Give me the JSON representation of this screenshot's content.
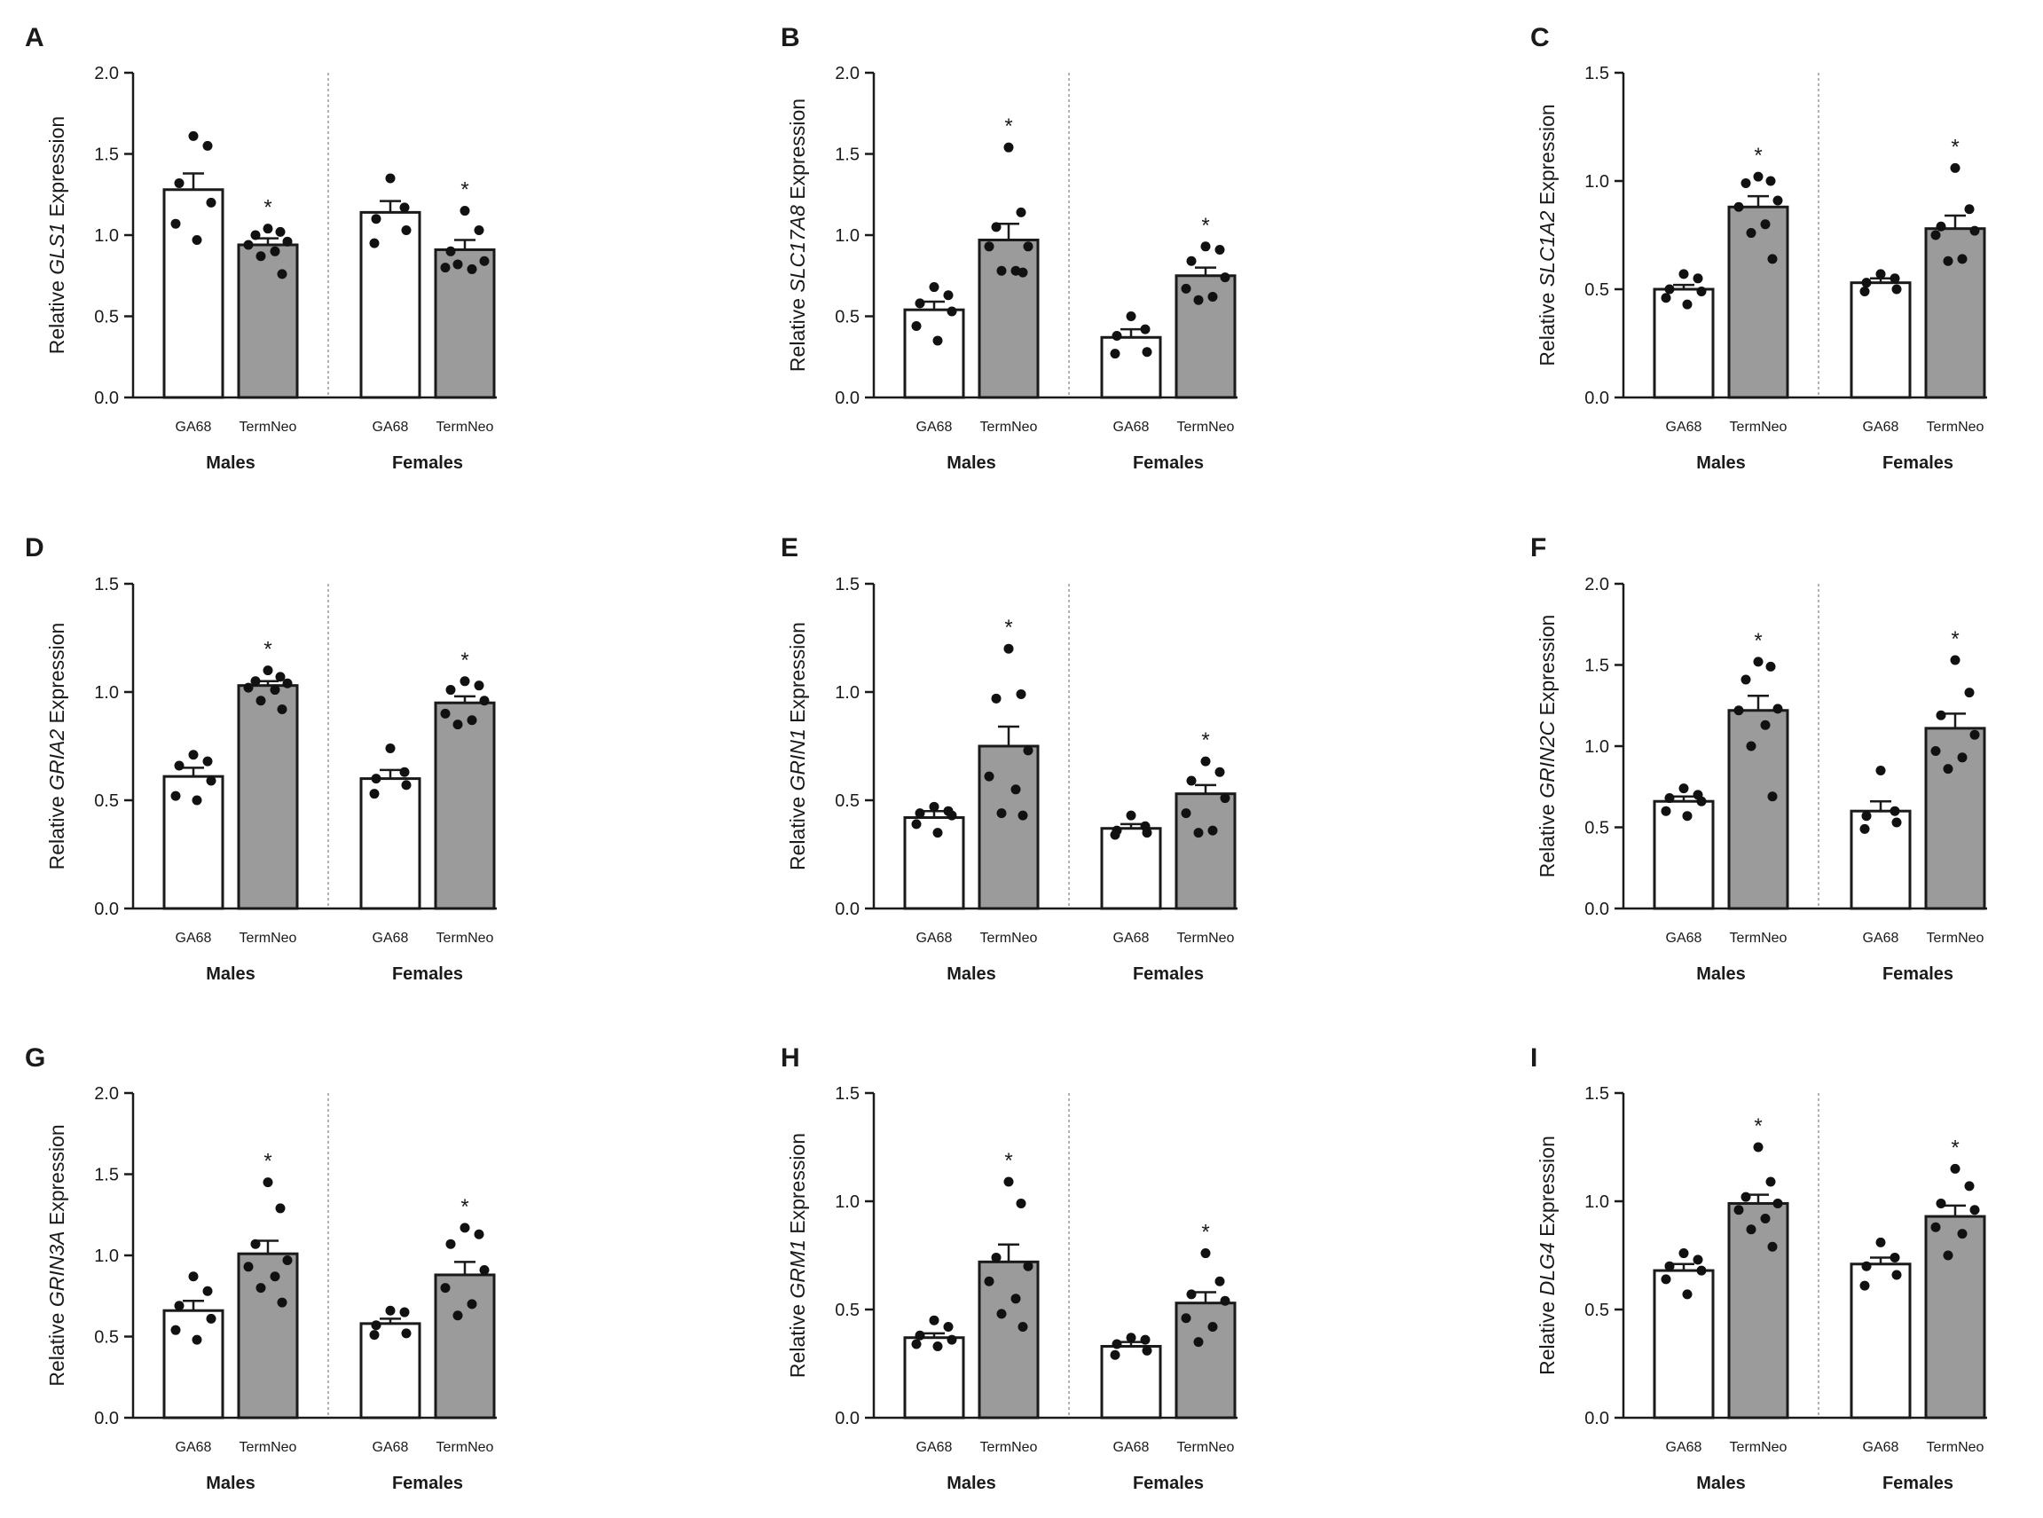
{
  "chart_data": [
    {
      "type": "bar",
      "panel": "A",
      "gene": "GLS1",
      "ylabel_prefix": "Relative ",
      "ylabel_suffix": " Expression",
      "ylim": [
        0,
        2.0
      ],
      "yticks": [
        "0.0",
        "0.5",
        "1.0",
        "1.5",
        "2.0"
      ],
      "ytick_values": [
        0,
        0.5,
        1.0,
        1.5,
        2.0
      ],
      "groups": [
        "Males",
        "Females"
      ],
      "categories": [
        "GA68",
        "TermNeo"
      ],
      "bars": [
        {
          "group": "Males",
          "category": "GA68",
          "mean": 1.28,
          "sem": 0.1,
          "points": [
            1.61,
            1.55,
            1.32,
            1.2,
            1.07,
            0.97
          ],
          "sig": ""
        },
        {
          "group": "Males",
          "category": "TermNeo",
          "mean": 0.94,
          "sem": 0.04,
          "points": [
            1.04,
            1.02,
            1.0,
            0.96,
            0.94,
            0.9,
            0.87,
            0.76
          ],
          "sig": "*"
        },
        {
          "group": "Females",
          "category": "GA68",
          "mean": 1.14,
          "sem": 0.07,
          "points": [
            1.35,
            1.17,
            1.1,
            1.03,
            0.95
          ],
          "sig": ""
        },
        {
          "group": "Females",
          "category": "TermNeo",
          "mean": 0.91,
          "sem": 0.06,
          "points": [
            1.15,
            1.03,
            0.9,
            0.84,
            0.8,
            0.79,
            0.82
          ],
          "sig": "*"
        }
      ]
    },
    {
      "type": "bar",
      "panel": "B",
      "gene": "SLC17A8",
      "ylabel_prefix": "Relative ",
      "ylabel_suffix": " Expression",
      "ylim": [
        0,
        2.0
      ],
      "yticks": [
        "0.0",
        "0.5",
        "1.0",
        "1.5",
        "2.0"
      ],
      "ytick_values": [
        0,
        0.5,
        1.0,
        1.5,
        2.0
      ],
      "groups": [
        "Males",
        "Females"
      ],
      "categories": [
        "GA68",
        "TermNeo"
      ],
      "bars": [
        {
          "group": "Males",
          "category": "GA68",
          "mean": 0.54,
          "sem": 0.05,
          "points": [
            0.68,
            0.63,
            0.58,
            0.53,
            0.44,
            0.35
          ],
          "sig": ""
        },
        {
          "group": "Males",
          "category": "TermNeo",
          "mean": 0.97,
          "sem": 0.1,
          "points": [
            1.54,
            1.14,
            1.05,
            0.93,
            0.93,
            0.78,
            0.78,
            0.77
          ],
          "sig": "*"
        },
        {
          "group": "Females",
          "category": "GA68",
          "mean": 0.37,
          "sem": 0.05,
          "points": [
            0.5,
            0.42,
            0.38,
            0.28,
            0.27
          ],
          "sig": ""
        },
        {
          "group": "Females",
          "category": "TermNeo",
          "mean": 0.75,
          "sem": 0.05,
          "points": [
            0.93,
            0.91,
            0.84,
            0.74,
            0.67,
            0.62,
            0.6
          ],
          "sig": "*"
        }
      ]
    },
    {
      "type": "bar",
      "panel": "C",
      "gene": "SLC1A2",
      "ylabel_prefix": "Relative ",
      "ylabel_suffix": " Expression",
      "ylim": [
        0,
        1.5
      ],
      "yticks": [
        "0.0",
        "0.5",
        "1.0",
        "1.5"
      ],
      "ytick_values": [
        0,
        0.5,
        1.0,
        1.5
      ],
      "groups": [
        "Males",
        "Females"
      ],
      "categories": [
        "GA68",
        "TermNeo"
      ],
      "bars": [
        {
          "group": "Males",
          "category": "GA68",
          "mean": 0.5,
          "sem": 0.02,
          "points": [
            0.57,
            0.55,
            0.5,
            0.49,
            0.46,
            0.43
          ],
          "sig": ""
        },
        {
          "group": "Males",
          "category": "TermNeo",
          "mean": 0.88,
          "sem": 0.05,
          "points": [
            1.02,
            1.0,
            0.99,
            0.91,
            0.88,
            0.8,
            0.76,
            0.64
          ],
          "sig": "*"
        },
        {
          "group": "Females",
          "category": "GA68",
          "mean": 0.53,
          "sem": 0.02,
          "points": [
            0.57,
            0.55,
            0.53,
            0.5,
            0.49
          ],
          "sig": ""
        },
        {
          "group": "Females",
          "category": "TermNeo",
          "mean": 0.78,
          "sem": 0.06,
          "points": [
            1.06,
            0.87,
            0.79,
            0.77,
            0.75,
            0.64,
            0.63
          ],
          "sig": "*"
        }
      ]
    },
    {
      "type": "bar",
      "panel": "D",
      "gene": "GRIA2",
      "ylabel_prefix": "Relative ",
      "ylabel_suffix": " Expression",
      "ylim": [
        0,
        1.5
      ],
      "yticks": [
        "0.0",
        "0.5",
        "1.0",
        "1.5"
      ],
      "ytick_values": [
        0,
        0.5,
        1.0,
        1.5
      ],
      "groups": [
        "Males",
        "Females"
      ],
      "categories": [
        "GA68",
        "TermNeo"
      ],
      "bars": [
        {
          "group": "Males",
          "category": "GA68",
          "mean": 0.61,
          "sem": 0.04,
          "points": [
            0.71,
            0.68,
            0.66,
            0.59,
            0.52,
            0.5
          ],
          "sig": ""
        },
        {
          "group": "Males",
          "category": "TermNeo",
          "mean": 1.03,
          "sem": 0.02,
          "points": [
            1.1,
            1.07,
            1.05,
            1.04,
            1.02,
            1.01,
            0.96,
            0.92
          ],
          "sig": "*"
        },
        {
          "group": "Females",
          "category": "GA68",
          "mean": 0.6,
          "sem": 0.04,
          "points": [
            0.74,
            0.63,
            0.6,
            0.57,
            0.53
          ],
          "sig": ""
        },
        {
          "group": "Females",
          "category": "TermNeo",
          "mean": 0.95,
          "sem": 0.03,
          "points": [
            1.05,
            1.03,
            1.01,
            0.96,
            0.9,
            0.87,
            0.85
          ],
          "sig": "*"
        }
      ]
    },
    {
      "type": "bar",
      "panel": "E",
      "gene": "GRIN1",
      "ylabel_prefix": "Relative ",
      "ylabel_suffix": " Expression",
      "ylim": [
        0,
        1.5
      ],
      "yticks": [
        "0.0",
        "0.5",
        "1.0",
        "1.5"
      ],
      "ytick_values": [
        0,
        0.5,
        1.0,
        1.5
      ],
      "groups": [
        "Males",
        "Females"
      ],
      "categories": [
        "GA68",
        "TermNeo"
      ],
      "bars": [
        {
          "group": "Males",
          "category": "GA68",
          "mean": 0.42,
          "sem": 0.03,
          "points": [
            0.47,
            0.45,
            0.44,
            0.43,
            0.39,
            0.35
          ],
          "sig": ""
        },
        {
          "group": "Males",
          "category": "TermNeo",
          "mean": 0.75,
          "sem": 0.09,
          "points": [
            1.2,
            0.99,
            0.97,
            0.73,
            0.61,
            0.55,
            0.44,
            0.43
          ],
          "sig": "*"
        },
        {
          "group": "Females",
          "category": "GA68",
          "mean": 0.37,
          "sem": 0.02,
          "points": [
            0.43,
            0.38,
            0.36,
            0.35,
            0.34
          ],
          "sig": ""
        },
        {
          "group": "Females",
          "category": "TermNeo",
          "mean": 0.53,
          "sem": 0.04,
          "points": [
            0.68,
            0.63,
            0.59,
            0.51,
            0.44,
            0.36,
            0.35
          ],
          "sig": "*"
        }
      ]
    },
    {
      "type": "bar",
      "panel": "F",
      "gene": "GRIN2C",
      "ylabel_prefix": "Relative ",
      "ylabel_suffix": " Expression",
      "ylim": [
        0,
        2.0
      ],
      "yticks": [
        "0.0",
        "0.5",
        "1.0",
        "1.5",
        "2.0"
      ],
      "ytick_values": [
        0,
        0.5,
        1.0,
        1.5,
        2.0
      ],
      "groups": [
        "Males",
        "Females"
      ],
      "categories": [
        "GA68",
        "TermNeo"
      ],
      "bars": [
        {
          "group": "Males",
          "category": "GA68",
          "mean": 0.66,
          "sem": 0.03,
          "points": [
            0.74,
            0.7,
            0.68,
            0.66,
            0.6,
            0.57
          ],
          "sig": ""
        },
        {
          "group": "Males",
          "category": "TermNeo",
          "mean": 1.22,
          "sem": 0.09,
          "points": [
            1.52,
            1.49,
            1.41,
            1.23,
            1.22,
            1.13,
            1.0,
            0.69
          ],
          "sig": "*"
        },
        {
          "group": "Females",
          "category": "GA68",
          "mean": 0.6,
          "sem": 0.06,
          "points": [
            0.85,
            0.6,
            0.57,
            0.53,
            0.49
          ],
          "sig": ""
        },
        {
          "group": "Females",
          "category": "TermNeo",
          "mean": 1.11,
          "sem": 0.09,
          "points": [
            1.53,
            1.33,
            1.19,
            1.07,
            0.97,
            0.93,
            0.86
          ],
          "sig": "*"
        }
      ]
    },
    {
      "type": "bar",
      "panel": "G",
      "gene": "GRIN3A",
      "ylabel_prefix": "Relative ",
      "ylabel_suffix": " Expression",
      "ylim": [
        0,
        2.0
      ],
      "yticks": [
        "0.0",
        "0.5",
        "1.0",
        "1.5",
        "2.0"
      ],
      "ytick_values": [
        0,
        0.5,
        1.0,
        1.5,
        2.0
      ],
      "groups": [
        "Males",
        "Females"
      ],
      "categories": [
        "GA68",
        "TermNeo"
      ],
      "bars": [
        {
          "group": "Males",
          "category": "GA68",
          "mean": 0.66,
          "sem": 0.06,
          "points": [
            0.87,
            0.78,
            0.69,
            0.61,
            0.54,
            0.48
          ],
          "sig": ""
        },
        {
          "group": "Males",
          "category": "TermNeo",
          "mean": 1.01,
          "sem": 0.08,
          "points": [
            1.45,
            1.29,
            1.07,
            0.97,
            0.93,
            0.87,
            0.8,
            0.71
          ],
          "sig": "*"
        },
        {
          "group": "Females",
          "category": "GA68",
          "mean": 0.58,
          "sem": 0.03,
          "points": [
            0.66,
            0.65,
            0.57,
            0.52,
            0.51
          ],
          "sig": ""
        },
        {
          "group": "Females",
          "category": "TermNeo",
          "mean": 0.88,
          "sem": 0.08,
          "points": [
            1.17,
            1.13,
            1.07,
            0.91,
            0.8,
            0.7,
            0.63
          ],
          "sig": "*"
        }
      ]
    },
    {
      "type": "bar",
      "panel": "H",
      "gene": "GRM1",
      "ylabel_prefix": "Relative ",
      "ylabel_suffix": " Expression",
      "ylim": [
        0,
        1.5
      ],
      "yticks": [
        "0.0",
        "0.5",
        "1.0",
        "1.5"
      ],
      "ytick_values": [
        0,
        0.5,
        1.0,
        1.5
      ],
      "groups": [
        "Males",
        "Females"
      ],
      "categories": [
        "GA68",
        "TermNeo"
      ],
      "bars": [
        {
          "group": "Males",
          "category": "GA68",
          "mean": 0.37,
          "sem": 0.02,
          "points": [
            0.45,
            0.42,
            0.38,
            0.36,
            0.34,
            0.33
          ],
          "sig": ""
        },
        {
          "group": "Males",
          "category": "TermNeo",
          "mean": 0.72,
          "sem": 0.08,
          "points": [
            1.09,
            0.99,
            0.74,
            0.7,
            0.63,
            0.55,
            0.48,
            0.42
          ],
          "sig": "*"
        },
        {
          "group": "Females",
          "category": "GA68",
          "mean": 0.33,
          "sem": 0.02,
          "points": [
            0.37,
            0.36,
            0.34,
            0.31,
            0.29
          ],
          "sig": ""
        },
        {
          "group": "Females",
          "category": "TermNeo",
          "mean": 0.53,
          "sem": 0.05,
          "points": [
            0.76,
            0.63,
            0.57,
            0.54,
            0.46,
            0.42,
            0.35
          ],
          "sig": "*"
        }
      ]
    },
    {
      "type": "bar",
      "panel": "I",
      "gene": "DLG4",
      "ylabel_prefix": "Relative ",
      "ylabel_suffix": " Expression",
      "ylim": [
        0,
        1.5
      ],
      "yticks": [
        "0.0",
        "0.5",
        "1.0",
        "1.5"
      ],
      "ytick_values": [
        0,
        0.5,
        1.0,
        1.5
      ],
      "groups": [
        "Males",
        "Females"
      ],
      "categories": [
        "GA68",
        "TermNeo"
      ],
      "bars": [
        {
          "group": "Males",
          "category": "GA68",
          "mean": 0.68,
          "sem": 0.03,
          "points": [
            0.76,
            0.73,
            0.7,
            0.68,
            0.64,
            0.57
          ],
          "sig": ""
        },
        {
          "group": "Males",
          "category": "TermNeo",
          "mean": 0.99,
          "sem": 0.04,
          "points": [
            1.25,
            1.09,
            1.02,
            0.99,
            0.96,
            0.92,
            0.87,
            0.79
          ],
          "sig": "*"
        },
        {
          "group": "Females",
          "category": "GA68",
          "mean": 0.71,
          "sem": 0.03,
          "points": [
            0.81,
            0.74,
            0.7,
            0.66,
            0.61
          ],
          "sig": ""
        },
        {
          "group": "Females",
          "category": "TermNeo",
          "mean": 0.93,
          "sem": 0.05,
          "points": [
            1.15,
            1.07,
            0.99,
            0.96,
            0.88,
            0.85,
            0.75
          ],
          "sig": "*"
        }
      ]
    }
  ],
  "colors": {
    "ga68_fill": "#ffffff",
    "termneo_fill": "#9b9b9b",
    "bar_stroke": "#1a1a1a",
    "point": "#111111",
    "axis": "#1a1a1a",
    "divider": "#9a9a9a"
  }
}
